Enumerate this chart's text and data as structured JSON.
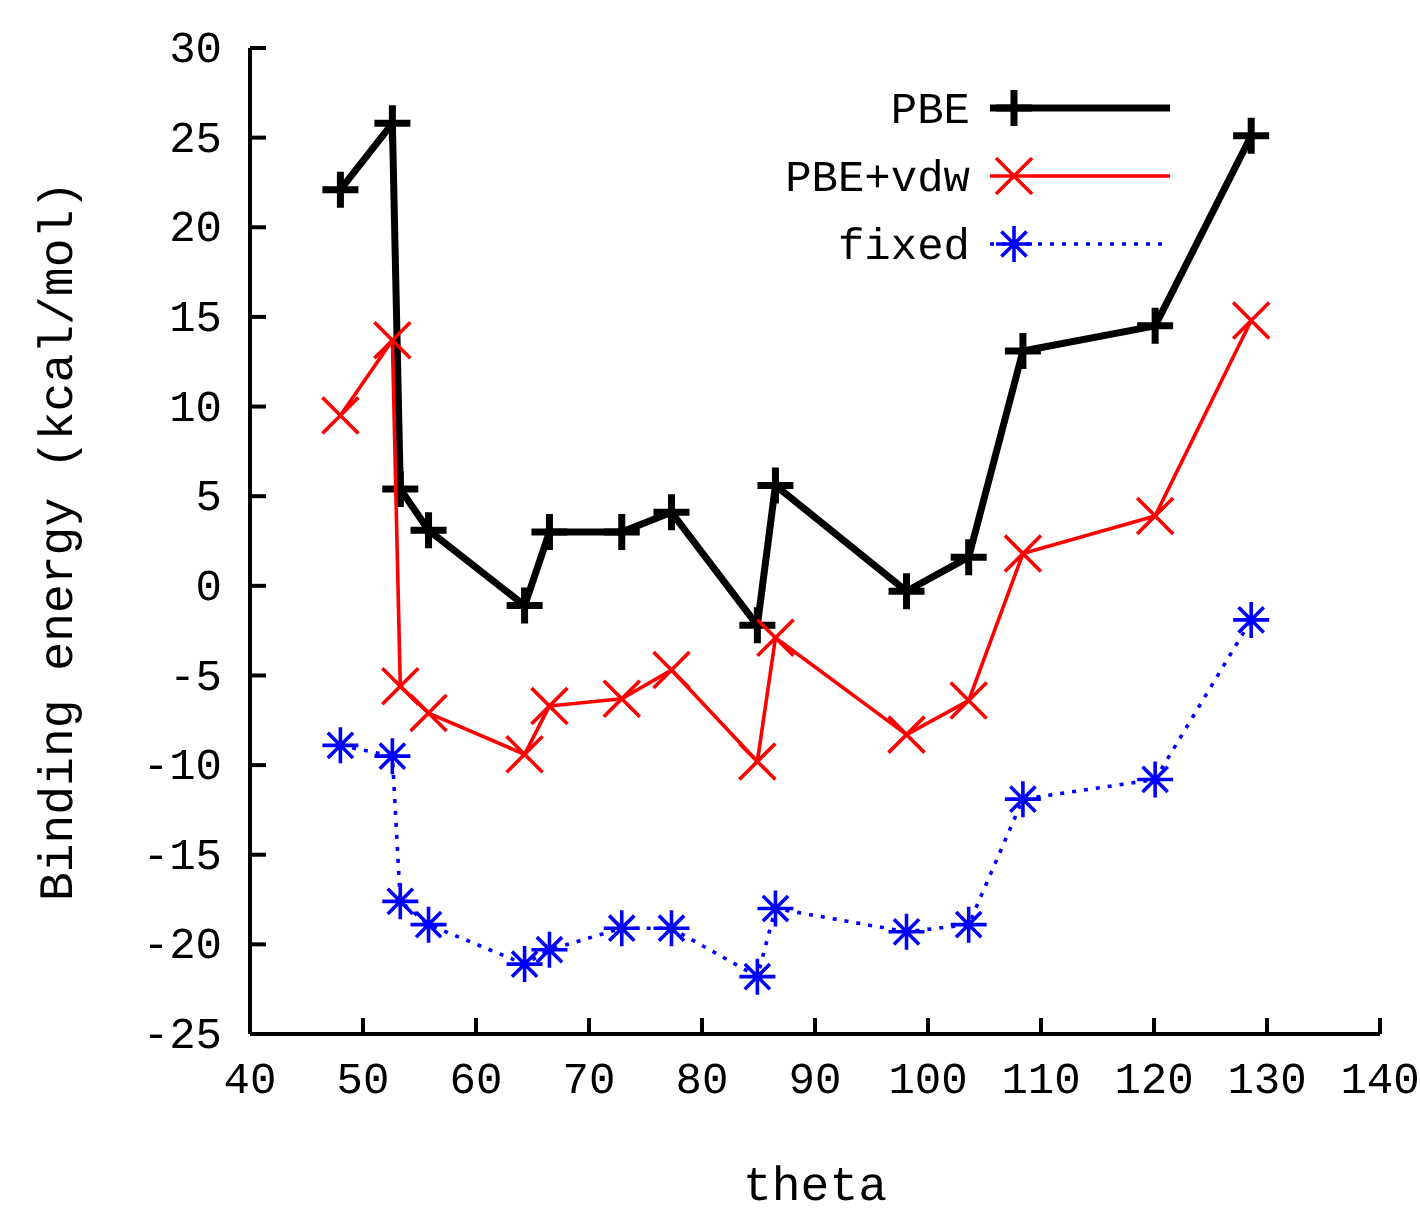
{
  "chart_data": {
    "type": "line",
    "xlabel": "theta",
    "ylabel": "Binding energy (kcal/mol)",
    "xlim": [
      40,
      140
    ],
    "xticks": [
      40,
      50,
      60,
      70,
      80,
      90,
      100,
      110,
      120,
      130,
      140
    ],
    "ylim": [
      -25,
      30
    ],
    "yticks": [
      -25,
      -20,
      -15,
      -10,
      -5,
      0,
      5,
      10,
      15,
      20,
      25,
      30
    ],
    "x": [
      48.0,
      52.6,
      53.3,
      55.8,
      64.3,
      66.5,
      72.9,
      77.3,
      84.9,
      86.5,
      98.1,
      103.6,
      108.4,
      120.1,
      128.6
    ],
    "legend": "top right",
    "grid": false,
    "series": [
      {
        "name": "PBE",
        "color": "#000000",
        "marker": "cross",
        "line_style": "solid",
        "values": [
          22.1,
          25.8,
          5.4,
          3.1,
          -1.1,
          3.0,
          3.0,
          4.1,
          -2.2,
          5.6,
          -0.3,
          1.6,
          13.1,
          14.5,
          25.1
        ]
      },
      {
        "name": "PBE+vdw",
        "color": "#ff0000",
        "marker": "cross",
        "line_style": "solid",
        "values": [
          9.5,
          13.7,
          -5.6,
          -7.1,
          -9.4,
          -6.7,
          -6.3,
          -4.7,
          -9.8,
          -2.9,
          -8.3,
          -6.4,
          1.8,
          3.9,
          14.8
        ]
      },
      {
        "name": "fixed",
        "color": "#0000ff",
        "marker": "cross",
        "line_style": "dotted",
        "values": [
          -8.9,
          -9.5,
          -17.6,
          -18.9,
          -21.1,
          -20.3,
          -19.1,
          -19.1,
          -21.8,
          -18.0,
          -19.3,
          -18.9,
          -11.9,
          -10.8,
          -1.9
        ]
      }
    ]
  }
}
